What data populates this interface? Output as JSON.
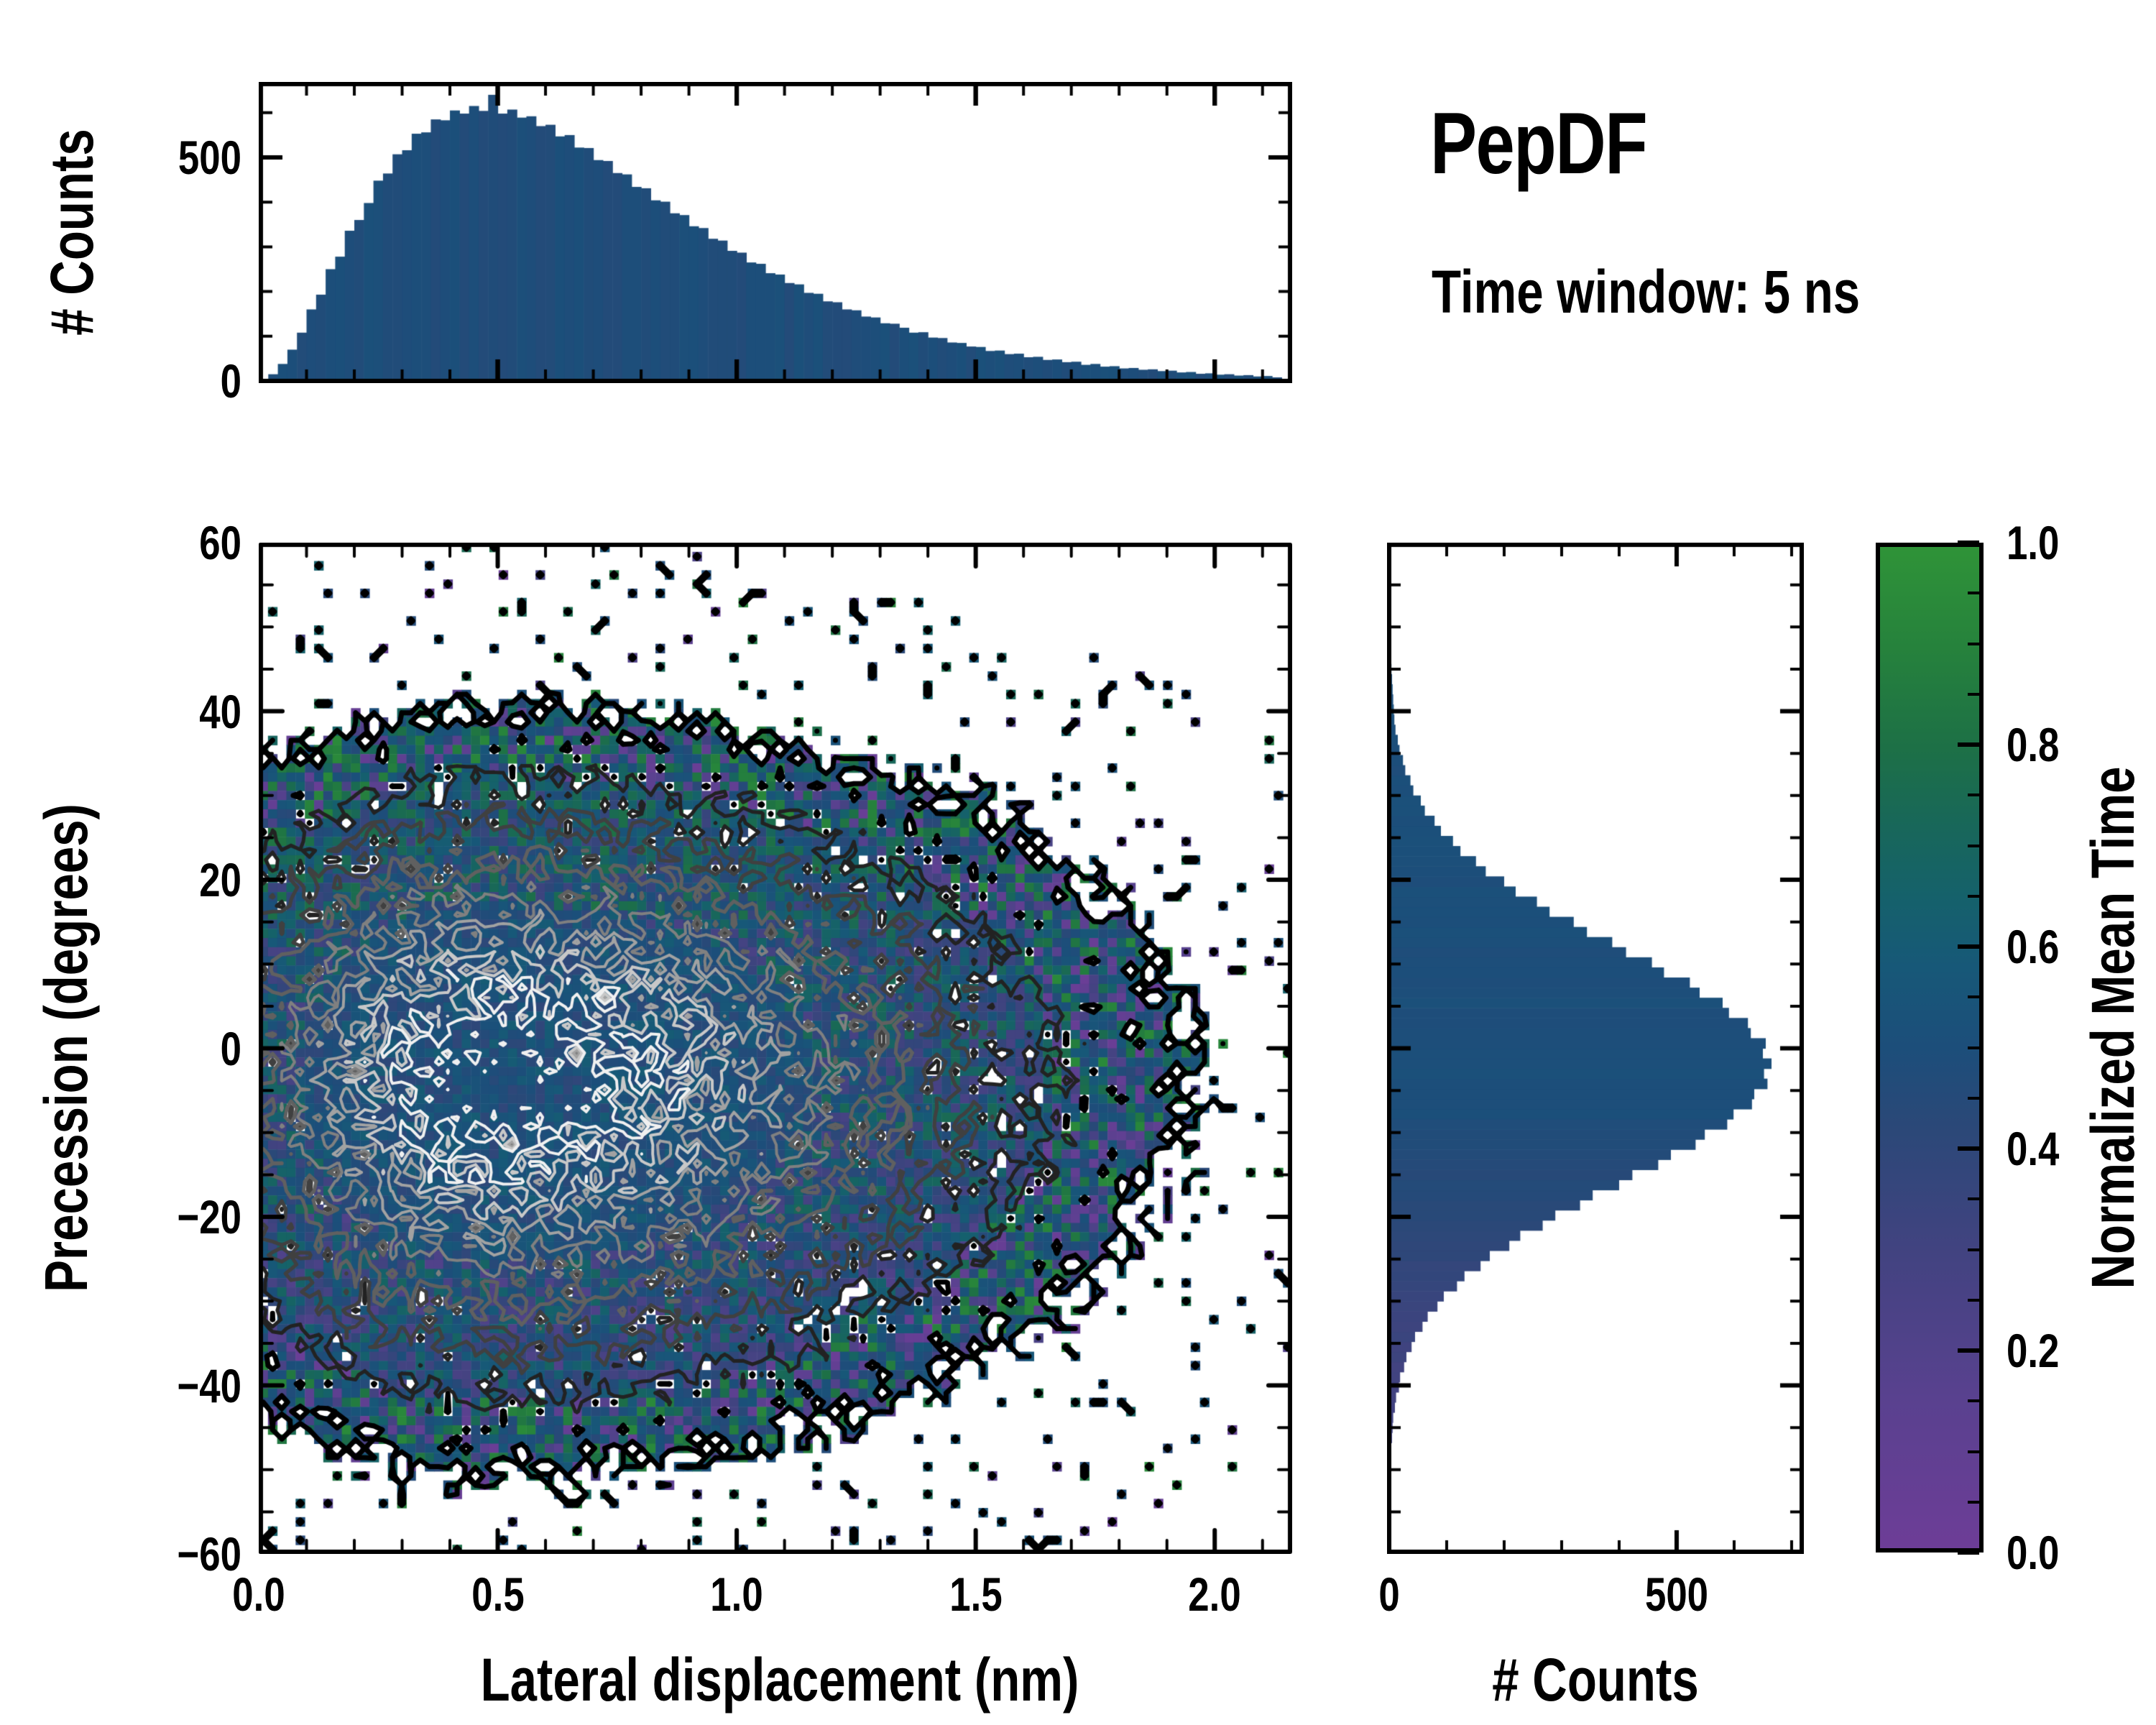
{
  "header": {
    "title": "PepDF",
    "subtitle": "Time window: 5 ns"
  },
  "colors": {
    "background": "#ffffff",
    "axis": "#000000",
    "bar_base": "#17496f"
  },
  "chart_data": [
    {
      "id": "top_histogram",
      "type": "bar",
      "ylabel": "# Counts",
      "xlabel": "",
      "xlim": [
        0,
        2.162
      ],
      "ylim": [
        0,
        674
      ],
      "bin_start": 0.0,
      "bin_width": 0.02,
      "values": [
        2,
        15,
        38,
        70,
        108,
        160,
        193,
        250,
        278,
        336,
        360,
        398,
        448,
        464,
        507,
        516,
        553,
        556,
        585,
        583,
        605,
        598,
        615,
        604,
        640,
        598,
        607,
        589,
        592,
        570,
        573,
        547,
        550,
        522,
        521,
        494,
        492,
        465,
        462,
        434,
        431,
        404,
        401,
        375,
        371,
        346,
        342,
        318,
        314,
        291,
        287,
        265,
        262,
        241,
        238,
        219,
        216,
        197,
        195,
        178,
        176,
        160,
        158,
        144,
        142,
        129,
        128,
        119,
        108,
        109,
        97,
        96,
        86,
        85,
        77,
        76,
        67,
        68,
        60,
        61,
        53,
        54,
        47,
        48,
        42,
        43,
        36,
        38,
        32,
        33,
        28,
        29,
        25,
        26,
        22,
        23,
        19,
        20,
        16,
        17,
        14,
        15,
        12,
        13,
        10,
        11,
        8
      ],
      "yticks": {
        "majors": [
          {
            "v": 0,
            "label": "0"
          },
          {
            "v": 500,
            "label": "500"
          }
        ],
        "minor_step": 100
      },
      "xticks": {
        "majors": [
          0,
          0.5,
          1,
          1.5,
          2
        ],
        "labels": [],
        "minor_step": 0.1
      }
    },
    {
      "id": "heatmap",
      "type": "heatmap",
      "xlabel": "Lateral displacement (nm)",
      "ylabel": "Precession (degrees)",
      "xlim": [
        0,
        2.162
      ],
      "ylim": [
        -60,
        60
      ],
      "xticks": {
        "majors": [
          0,
          0.5,
          1,
          1.5,
          2
        ],
        "labels": [
          "0.0",
          "0.5",
          "1.0",
          "1.5",
          "2.0"
        ],
        "minor_step": 0.1
      },
      "yticks": {
        "majors": [
          60,
          40,
          20,
          0,
          -20,
          -40,
          -60
        ],
        "labels": [
          "60",
          "40",
          "20",
          "0",
          "−20",
          "−40",
          "−60"
        ],
        "minor_step": 5
      },
      "grid": {
        "nx": 112,
        "ny": 110
      },
      "distribution": {
        "center_x": 0.48,
        "center_y": -3,
        "sigma_x_left": 0.3,
        "sigma_x_right": 0.52,
        "sigma_y_up": 15.5,
        "sigma_y_down": 17,
        "tail_exponent": 1.65,
        "tail_scale": 1.3
      },
      "noise": {
        "seed": 1337,
        "amplitude": 0.38,
        "fill_threshold": 0.013,
        "straggler_f_min": 0.0004,
        "straggler_prob": 0.055
      },
      "value_model": {
        "core_v": 0.5,
        "core_jitter": 0.22,
        "mid_jitter": 0.5,
        "green_bias_y": 15,
        "purple_bias_y": -20,
        "fringe_blue": [
          0.42,
          0.58
        ],
        "fringe_green": [
          0.62,
          0.95
        ],
        "fringe_purple": [
          0.02,
          0.3
        ]
      },
      "contours": {
        "levels": [
          0.016,
          0.05,
          0.1,
          0.18,
          0.29,
          0.43,
          0.58,
          0.74
        ],
        "colors": [
          "#000000",
          "#222222",
          "#404040",
          "#606060",
          "#808080",
          "#a2a2a2",
          "#c8c8c8",
          "#f0f0f0"
        ],
        "widths": [
          7,
          5,
          5,
          5,
          4,
          4,
          4,
          4
        ]
      }
    },
    {
      "id": "right_histogram",
      "type": "bar",
      "orientation": "horizontal",
      "xlabel": "# Counts",
      "ylabel": "",
      "xlim": [
        0,
        725
      ],
      "ylim": [
        -60,
        60
      ],
      "bin_start": -60,
      "bin_width": 1.2,
      "values": [
        0,
        0,
        0,
        0,
        0,
        0,
        0,
        1,
        1,
        3,
        3,
        5,
        6,
        7,
        10,
        12,
        17,
        19,
        26,
        30,
        39,
        45,
        58,
        67,
        84,
        95,
        118,
        131,
        159,
        175,
        209,
        228,
        267,
        289,
        332,
        354,
        400,
        423,
        468,
        490,
        533,
        549,
        588,
        599,
        631,
        635,
        658,
        652,
        665,
        650,
        655,
        629,
        624,
        591,
        580,
        540,
        523,
        478,
        457,
        412,
        388,
        344,
        321,
        279,
        257,
        220,
        200,
        168,
        151,
        124,
        111,
        90,
        79,
        62,
        55,
        42,
        37,
        28,
        24,
        18,
        15,
        11,
        9,
        8,
        7,
        6,
        5,
        4,
        3,
        3,
        2,
        2,
        1,
        1,
        1,
        1,
        0,
        0,
        0,
        0
      ],
      "xticks": {
        "majors": [
          {
            "v": 0,
            "label": "0"
          },
          {
            "v": 500,
            "label": "500"
          }
        ],
        "minor_step": 100
      },
      "yticks": {
        "majors": [
          60,
          40,
          20,
          0,
          -20,
          -40,
          -60
        ],
        "minor_step": 5
      }
    },
    {
      "id": "colorbar",
      "type": "colorbar",
      "label": "Normalized Mean Time",
      "ticks": {
        "majors": [
          {
            "v": 1.0,
            "label": "1.0"
          },
          {
            "v": 0.8,
            "label": "0.8"
          },
          {
            "v": 0.6,
            "label": "0.6"
          },
          {
            "v": 0.4,
            "label": "0.4"
          },
          {
            "v": 0.2,
            "label": "0.2"
          },
          {
            "v": 0.0,
            "label": "0.0"
          }
        ],
        "minor_step": 0.05
      },
      "stops": [
        [
          0.0,
          "#6d3d97"
        ],
        [
          0.15,
          "#59418f"
        ],
        [
          0.3,
          "#414380"
        ],
        [
          0.42,
          "#2b4878"
        ],
        [
          0.5,
          "#1c4e7a"
        ],
        [
          0.58,
          "#175878"
        ],
        [
          0.65,
          "#15616b"
        ],
        [
          0.72,
          "#18675a"
        ],
        [
          0.8,
          "#1d7046"
        ],
        [
          0.9,
          "#26823c"
        ],
        [
          1.0,
          "#2f9338"
        ]
      ]
    }
  ]
}
